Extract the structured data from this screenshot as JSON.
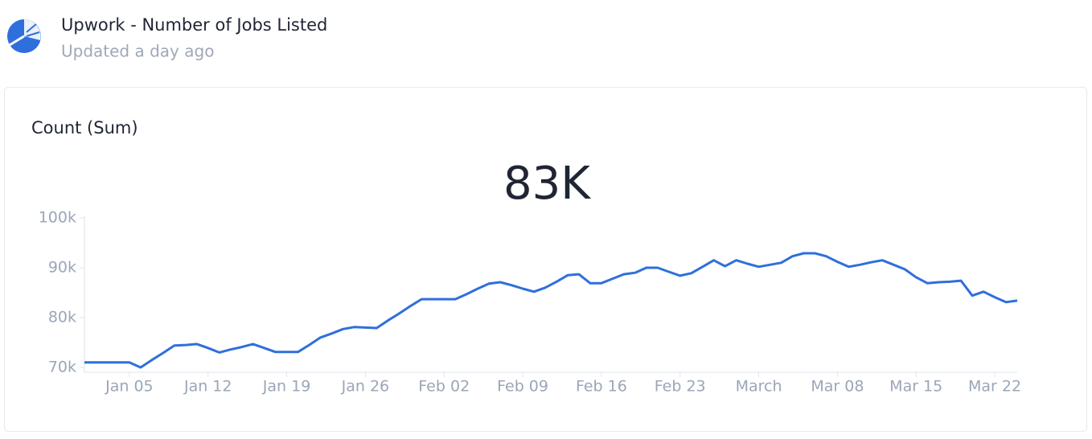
{
  "header": {
    "title": "Upwork - Number of Jobs Listed",
    "subtitle": "Updated a day ago"
  },
  "card": {
    "label": "Count (Sum)",
    "big_number": "83K"
  },
  "chart_data": {
    "type": "line",
    "x": [
      "Jan 01",
      "Jan 02",
      "Jan 03",
      "Jan 04",
      "Jan 05",
      "Jan 06",
      "Jan 07",
      "Jan 08",
      "Jan 09",
      "Jan 10",
      "Jan 11",
      "Jan 12",
      "Jan 13",
      "Jan 14",
      "Jan 15",
      "Jan 16",
      "Jan 17",
      "Jan 18",
      "Jan 19",
      "Jan 20",
      "Jan 21",
      "Jan 22",
      "Jan 23",
      "Jan 24",
      "Jan 25",
      "Jan 26",
      "Jan 27",
      "Jan 28",
      "Jan 29",
      "Jan 30",
      "Jan 31",
      "Feb 01",
      "Feb 02",
      "Feb 03",
      "Feb 04",
      "Feb 05",
      "Feb 06",
      "Feb 07",
      "Feb 08",
      "Feb 09",
      "Feb 10",
      "Feb 11",
      "Feb 12",
      "Feb 13",
      "Feb 14",
      "Feb 15",
      "Feb 16",
      "Feb 17",
      "Feb 18",
      "Feb 19",
      "Feb 20",
      "Feb 21",
      "Feb 22",
      "Feb 23",
      "Feb 24",
      "Feb 25",
      "Feb 26",
      "Feb 27",
      "Feb 28",
      "Feb 29",
      "Mar 01",
      "Mar 02",
      "Mar 03",
      "Mar 04",
      "Mar 05",
      "Mar 06",
      "Mar 07",
      "Mar 08",
      "Mar 09",
      "Mar 10",
      "Mar 11",
      "Mar 12",
      "Mar 13",
      "Mar 14",
      "Mar 15",
      "Mar 16",
      "Mar 17",
      "Mar 18",
      "Mar 19",
      "Mar 20",
      "Mar 21",
      "Mar 22",
      "Mar 23",
      "Mar 24"
    ],
    "series": [
      {
        "color": "#2f6fdc",
        "values": [
          71000,
          71000,
          71000,
          71000,
          71000,
          70000,
          71500,
          72900,
          74400,
          74500,
          74700,
          73900,
          73000,
          73600,
          74100,
          74700,
          73900,
          73100,
          73100,
          73100,
          74500,
          76000,
          76800,
          77700,
          78100,
          78000,
          77900,
          79400,
          80800,
          82300,
          83700,
          83700,
          83700,
          83700,
          84700,
          85800,
          86800,
          87100,
          86500,
          85800,
          85200,
          86000,
          87200,
          88500,
          88700,
          86900,
          86900,
          87800,
          88700,
          89000,
          90000,
          90000,
          89200,
          88400,
          88900,
          90200,
          91500,
          90300,
          91500,
          90800,
          90200,
          90600,
          91000,
          92300,
          92900,
          92900,
          92300,
          91200,
          90200,
          90600,
          91100,
          91500,
          90600,
          89700,
          88100,
          86900,
          87100,
          87200,
          87400,
          84400,
          85200,
          84100,
          83100,
          83400
        ]
      }
    ],
    "xlim": [
      "Jan 01",
      "Mar 24"
    ],
    "xticks": [
      "Jan 05",
      "Jan 12",
      "Jan 19",
      "Jan 26",
      "Feb 02",
      "Feb 09",
      "Feb 16",
      "Feb 23",
      {
        "value": "Mar 01",
        "label": "March"
      },
      "Mar 08",
      "Mar 15",
      "Mar 22"
    ],
    "ylim": [
      70000,
      100000
    ],
    "yticks": [
      {
        "value": 70000,
        "label": "70k"
      },
      {
        "value": 80000,
        "label": "80k"
      },
      {
        "value": 90000,
        "label": "90k"
      },
      {
        "value": 100000,
        "label": "100k"
      }
    ]
  }
}
